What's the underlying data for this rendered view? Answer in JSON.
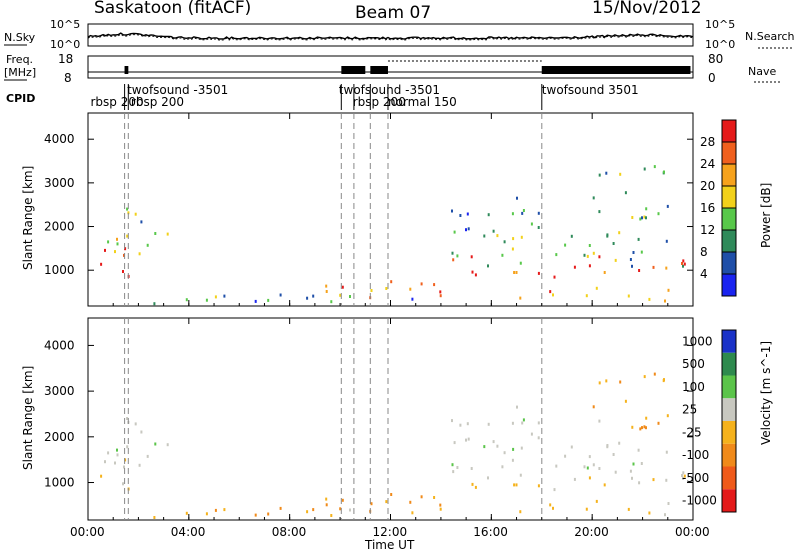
{
  "header": {
    "site": "Saskatoon (fitACF)",
    "beam": "Beam 07",
    "date": "15/Nov/2012"
  },
  "noise_panel": {
    "left_label": "N.Sky",
    "right_label": "N.Search",
    "left_ticks": [
      "10^5",
      "10^0"
    ],
    "right_ticks": [
      "10^5",
      "10^0"
    ]
  },
  "freq_panel": {
    "left_label_1": "Freq.",
    "left_label_2": "[MHz]",
    "left_ticks": [
      "18",
      "8"
    ],
    "right_label": "Nave",
    "right_ticks": [
      "80",
      "0"
    ]
  },
  "cpid": {
    "label": "CPID",
    "modes": [
      {
        "text": "rbsp  200",
        "row": 2,
        "x_hour": 0.1
      },
      {
        "text": "twofsound  -3501",
        "row": 1,
        "x_hour": 1.55
      },
      {
        "text": "rbsp  200",
        "row": 2,
        "x_hour": 1.7
      },
      {
        "text": "twofsound  -3501",
        "row": 1,
        "x_hour": 9.95
      },
      {
        "text": "rbsp  200",
        "row": 2,
        "x_hour": 10.5
      },
      {
        "text": "normal  150",
        "row": 2,
        "x_hour": 11.9
      },
      {
        "text": "twofsound  3501",
        "row": 1,
        "x_hour": 18.0
      }
    ],
    "change_hours": [
      1.45,
      1.6,
      10.05,
      10.55,
      11.2,
      11.9,
      18.0
    ]
  },
  "axes": {
    "x_ticks": [
      "00:00",
      "04:00",
      "08:00",
      "12:00",
      "16:00",
      "20:00",
      "00:00"
    ],
    "x_label": "Time UT",
    "y_label": "Slant Range [km]",
    "y_ticks": [
      "1000",
      "2000",
      "3000",
      "4000"
    ]
  },
  "power_colorbar": {
    "title": "Power [dB]",
    "ticks": [
      "4",
      "8",
      "12",
      "16",
      "20",
      "24",
      "28"
    ],
    "colors": [
      "#1a24f0",
      "#1f4fa8",
      "#2f8a5a",
      "#58c84a",
      "#f2d11b",
      "#f6a21c",
      "#f0601e",
      "#e51a1a"
    ]
  },
  "velocity_colorbar": {
    "title": "Velocity [m s^-1]",
    "ticks": [
      "1000",
      "500",
      "100",
      "25",
      "-25",
      "-100",
      "-500",
      "-1000"
    ],
    "colors": [
      "#1a32c8",
      "#2e8a4e",
      "#5bc44a",
      "#c8c8c0",
      "#f5b21c",
      "#f08a1a",
      "#ef5a1a",
      "#e41a1a"
    ]
  },
  "chart_data": {
    "type": "heatmap",
    "title": "Saskatoon (fitACF)  Beam 07  15/Nov/2012",
    "xlabel": "Time UT",
    "ylabel": "Slant Range [km]",
    "xlim": [
      0,
      24
    ],
    "ylim": [
      180,
      4600
    ],
    "x_tick_labels": [
      "00:00",
      "04:00",
      "08:00",
      "12:00",
      "16:00",
      "20:00",
      "00:00"
    ],
    "panels": [
      {
        "name": "Power [dB]",
        "range": [
          0,
          30
        ]
      },
      {
        "name": "Velocity [m s^-1]",
        "range": [
          -1000,
          1000
        ]
      }
    ],
    "scatter_regions": [
      {
        "t0": 0.3,
        "t1": 1.9,
        "r0": 700,
        "r1": 1700,
        "power_db": 28,
        "velocity": -20
      },
      {
        "t0": 0.3,
        "t1": 3.2,
        "r0": 1300,
        "r1": 2500,
        "power_db": 13,
        "velocity": 10
      },
      {
        "t0": 1.5,
        "t1": 14.0,
        "r0": 200,
        "r1": 480,
        "power_db": 10,
        "velocity": -110
      },
      {
        "t0": 8.2,
        "t1": 10.0,
        "r0": 500,
        "r1": 850,
        "power_db": 18,
        "velocity": -150
      },
      {
        "t0": 9.5,
        "t1": 14.3,
        "r0": 400,
        "r1": 850,
        "power_db": 22,
        "velocity": -200
      },
      {
        "t0": 13.5,
        "t1": 15.5,
        "r0": 350,
        "r1": 750,
        "power_db": 25,
        "velocity": -150
      },
      {
        "t0": 14.0,
        "t1": 23.8,
        "r0": 1100,
        "r1": 1900,
        "power_db": 12,
        "velocity": 0
      },
      {
        "t0": 14.2,
        "t1": 23.8,
        "r0": 850,
        "r1": 1350,
        "power_db": 26,
        "velocity": -20
      },
      {
        "t0": 17.0,
        "t1": 23.5,
        "r0": 300,
        "r1": 650,
        "power_db": 22,
        "velocity": -50
      },
      {
        "t0": 13.8,
        "t1": 18.0,
        "r0": 1900,
        "r1": 2800,
        "power_db": 8,
        "velocity": 0
      },
      {
        "t0": 20.0,
        "t1": 23.5,
        "r0": 2200,
        "r1": 3500,
        "power_db": 10,
        "velocity": -80
      }
    ]
  }
}
